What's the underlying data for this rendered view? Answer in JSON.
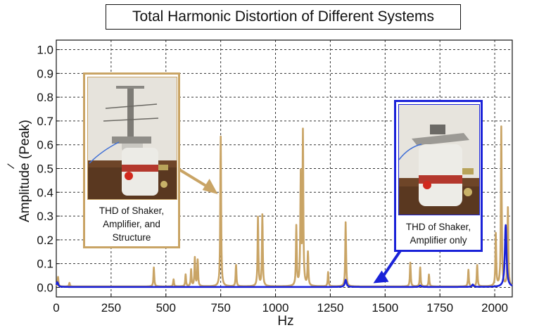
{
  "chart_data": {
    "type": "line",
    "title": "Total Harmonic Distortion of Different Systems",
    "xlabel": "Hz",
    "ylabel": "Amplitude (Peak)",
    "ylabel_mark": "/",
    "xlim": [
      0,
      2080
    ],
    "ylim": [
      -0.04,
      1.04
    ],
    "xticks": [
      0,
      250,
      500,
      750,
      1000,
      1250,
      1500,
      1750,
      2000
    ],
    "yticks": [
      0.0,
      0.1,
      0.2,
      0.3,
      0.4,
      0.5,
      0.6,
      0.7,
      0.8,
      0.9,
      1.0
    ],
    "ytick_labels": [
      "0.0",
      "0.1",
      "0.2",
      "0.3",
      "0.4",
      "0.5",
      "0.6",
      "0.7",
      "0.8",
      "0.9",
      "1.0"
    ],
    "grid": true,
    "series": [
      {
        "name": "THD of Shaker, Amplifier, and Structure",
        "color": "#c9a465",
        "peaks": [
          {
            "x": 8,
            "y": 0.04
          },
          {
            "x": 60,
            "y": 0.015
          },
          {
            "x": 445,
            "y": 0.08
          },
          {
            "x": 535,
            "y": 0.03
          },
          {
            "x": 590,
            "y": 0.05
          },
          {
            "x": 615,
            "y": 0.07
          },
          {
            "x": 632,
            "y": 0.12
          },
          {
            "x": 645,
            "y": 0.11
          },
          {
            "x": 750,
            "y": 0.63
          },
          {
            "x": 820,
            "y": 0.09
          },
          {
            "x": 920,
            "y": 0.29
          },
          {
            "x": 940,
            "y": 0.3
          },
          {
            "x": 1095,
            "y": 0.25
          },
          {
            "x": 1115,
            "y": 0.46
          },
          {
            "x": 1125,
            "y": 0.64
          },
          {
            "x": 1148,
            "y": 0.14
          },
          {
            "x": 1240,
            "y": 0.06
          },
          {
            "x": 1320,
            "y": 0.27
          },
          {
            "x": 1615,
            "y": 0.1
          },
          {
            "x": 1660,
            "y": 0.08
          },
          {
            "x": 1700,
            "y": 0.05
          },
          {
            "x": 1880,
            "y": 0.07
          },
          {
            "x": 1920,
            "y": 0.09
          },
          {
            "x": 2005,
            "y": 0.22
          },
          {
            "x": 2030,
            "y": 0.67
          },
          {
            "x": 2060,
            "y": 0.33
          }
        ]
      },
      {
        "name": "THD of Shaker, Amplifier only",
        "color": "#1a22d8",
        "peaks": [
          {
            "x": 5,
            "y": 0.02
          },
          {
            "x": 1320,
            "y": 0.03
          },
          {
            "x": 1660,
            "y": 0.006
          },
          {
            "x": 1900,
            "y": 0.01
          },
          {
            "x": 2050,
            "y": 0.26
          }
        ]
      }
    ],
    "annotations": [
      {
        "text": "THD of Shaker, Amplifier, and Structure",
        "points_to": {
          "x": 750,
          "y": 0.38
        }
      },
      {
        "text": "THD of Shaker, Amplifier only",
        "points_to": {
          "x": 1430,
          "y": 0.0
        }
      }
    ]
  },
  "insets": {
    "structure": {
      "caption_lines": [
        "THD of Shaker,",
        "Amplifier, and",
        "Structure"
      ],
      "image_alt": "shaker with mounted structure"
    },
    "shaker_only": {
      "caption_lines": [
        "THD of Shaker,",
        "Amplifier only"
      ],
      "image_alt": "shaker only"
    }
  }
}
